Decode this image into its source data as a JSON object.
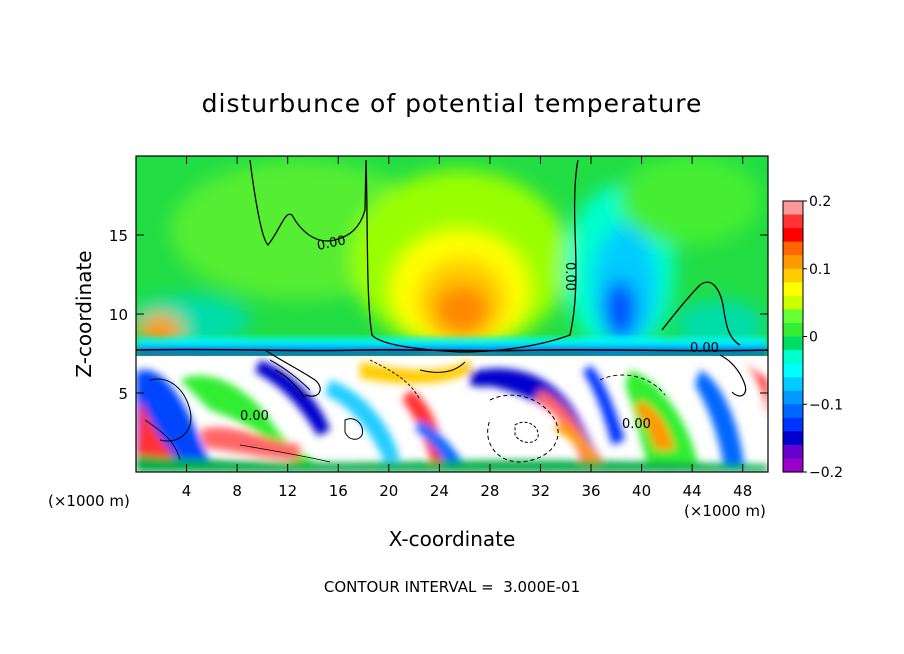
{
  "chart_data": {
    "type": "heatmap",
    "title": "disturbunce of potential temperature",
    "xlabel": "X-coordinate",
    "ylabel": "Z-coordinate",
    "x_unit_left": "(×1000 m)",
    "x_unit_right": "(×1000 m)",
    "x_ticks": [
      "4",
      "8",
      "12",
      "16",
      "20",
      "24",
      "28",
      "32",
      "36",
      "40",
      "44",
      "48"
    ],
    "x_tick_values": [
      4,
      8,
      12,
      16,
      20,
      24,
      28,
      32,
      36,
      40,
      44,
      48
    ],
    "y_ticks": [
      "5",
      "10",
      "15"
    ],
    "y_tick_values": [
      5,
      10,
      15
    ],
    "xlim": [
      0,
      50
    ],
    "ylim": [
      0,
      20
    ],
    "colorbar": {
      "range": [
        -0.2,
        0.2
      ],
      "tick_labels": [
        "0.2",
        "0.1",
        "0",
        "−0.1",
        "−0.2"
      ],
      "tick_values": [
        0.2,
        0.1,
        0,
        -0.1,
        -0.2
      ],
      "colors": [
        "#ff9999",
        "#ff3333",
        "#ff0000",
        "#ff6600",
        "#ff9900",
        "#ffcc00",
        "#ffff00",
        "#ccff00",
        "#66ff33",
        "#33ee33",
        "#00dd66",
        "#00ffcc",
        "#00ffff",
        "#00ccff",
        "#0099ff",
        "#0066ff",
        "#0033ff",
        "#0000cc",
        "#6600cc",
        "#9900cc"
      ]
    },
    "contour_labels": [
      "0.00",
      "0.00",
      "0.00",
      "0.00",
      "0.00"
    ],
    "footer": "CONTOUR INTERVAL =  3.000E-01"
  }
}
